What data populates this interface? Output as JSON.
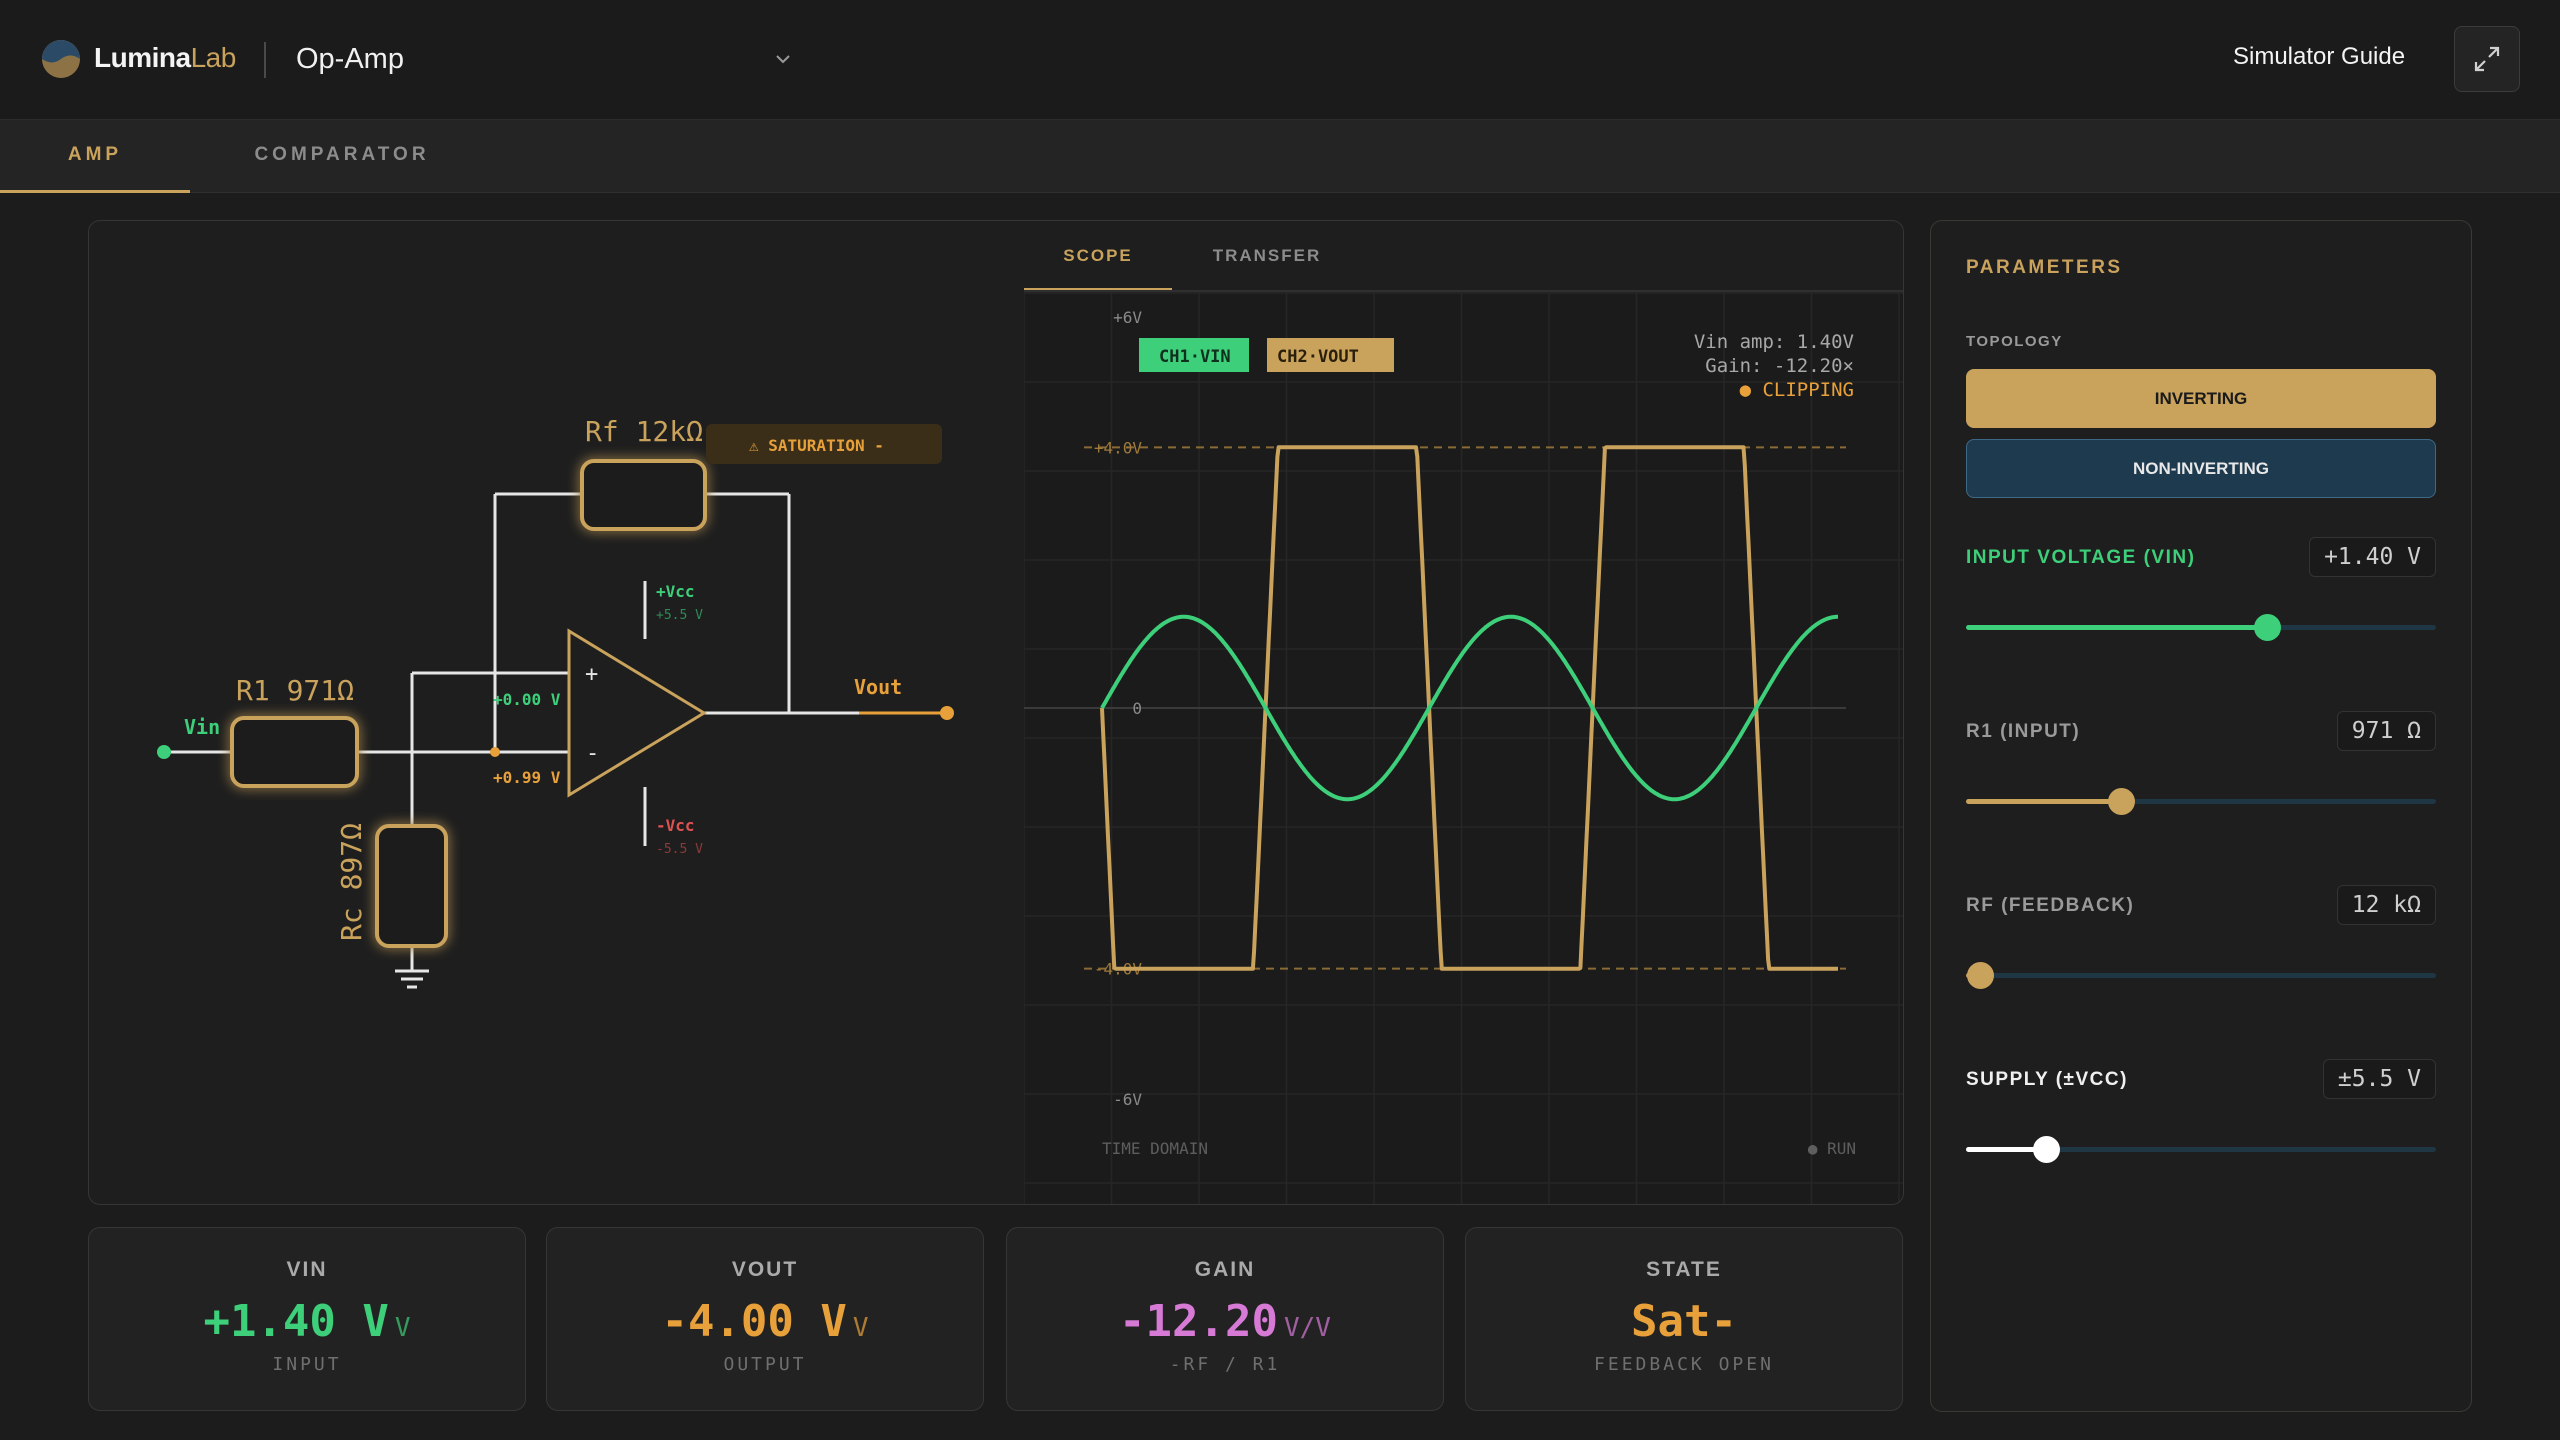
{
  "app": {
    "brand_main": "Lumina",
    "brand_accent": "Lab",
    "title": "Op-Amp",
    "guide_link": "Simulator Guide"
  },
  "tabs": [
    {
      "label": "AMP",
      "active": true
    },
    {
      "label": "COMPARATOR",
      "active": false
    }
  ],
  "circuit": {
    "rf_label": "Rf 12kΩ",
    "r1_label": "R1 971Ω",
    "rc_label": "Rc 897Ω",
    "vin_label": "Vin",
    "vout_label": "Vout",
    "saturation_badge": "⚠ SATURATION -",
    "plus_vcc": "+Vcc",
    "plus_vcc_value": "+5.5 V",
    "minus_vcc": "-Vcc",
    "minus_vcc_value": "-5.5 V",
    "noninv_voltage": "+0.00 V",
    "inv_voltage": "+0.99 V",
    "plus_sign": "+",
    "minus_sign": "-"
  },
  "scope": {
    "tabs": [
      {
        "label": "SCOPE",
        "active": true
      },
      {
        "label": "TRANSFER",
        "active": false
      }
    ],
    "ch1_label": "CH1·VIN",
    "ch2_label": "CH2·VOUT",
    "readout_vin": "Vin amp: 1.40V",
    "readout_gain": "Gain: -12.20×",
    "readout_clip": "● CLIPPING",
    "y_labels": {
      "top": "+6V",
      "clip_pos": "+4.0V",
      "zero": "0",
      "clip_neg": "-4.0V",
      "bottom": "-6V"
    },
    "footer_left": "TIME DOMAIN",
    "footer_right": "● RUN",
    "colors": {
      "ch1": "#3ecf7a",
      "ch2": "#c9a25c"
    }
  },
  "chart_data": {
    "type": "line",
    "ylim": [
      -6,
      6
    ],
    "y_ticks": [
      "+6V",
      "+4.0V",
      "0",
      "-4.0V",
      "-6V"
    ],
    "cycles": 2.25,
    "series": [
      {
        "name": "CH1·VIN",
        "amplitude": 1.4,
        "phase_deg": 0
      },
      {
        "name": "CH2·VOUT",
        "gain": -12.2,
        "clip_level": 4.0
      }
    ],
    "xlabel": "TIME DOMAIN"
  },
  "params": {
    "title": "PARAMETERS",
    "topology_label": "TOPOLOGY",
    "topology_options": [
      "INVERTING",
      "NON-INVERTING"
    ],
    "topology_selected": "INVERTING",
    "vin": {
      "label": "INPUT VOLTAGE (VIN)",
      "value": "+1.40 V",
      "fraction": 0.64,
      "color": "#3ecf7a"
    },
    "r1": {
      "label": "R1 (INPUT)",
      "value": "971 Ω",
      "fraction": 0.33,
      "color": "#c9a25c"
    },
    "rf": {
      "label": "RF (FEEDBACK)",
      "value": "12 kΩ",
      "fraction": 0.03,
      "color": "#c9a25c"
    },
    "supply": {
      "label": "SUPPLY (±VCC)",
      "value": "±5.5 V",
      "fraction": 0.17,
      "color": "#ffffff"
    }
  },
  "stats": [
    {
      "label": "VIN",
      "value": "+1.40 V",
      "unit": "V",
      "sub": "INPUT",
      "color": "#3ecf7a"
    },
    {
      "label": "VOUT",
      "value": "-4.00 V",
      "unit": "V",
      "sub": "OUTPUT",
      "color": "#e8a13a"
    },
    {
      "label": "GAIN",
      "value": "-12.20",
      "unit": "V/V",
      "sub": "-RF / R1",
      "color": "#d67ad6"
    },
    {
      "label": "STATE",
      "value": "Sat-",
      "unit": "",
      "sub": "FEEDBACK OPEN",
      "color": "#e8a13a"
    }
  ]
}
